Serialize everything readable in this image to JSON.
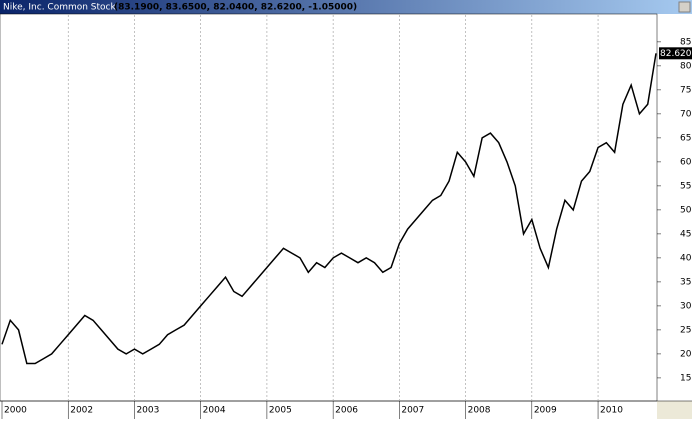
{
  "chart_data": {
    "type": "line",
    "title": "Nike, Inc. Common Stock",
    "subtitle": "(83.1900, 83.6500, 82.0400, 82.6200, -1.05000)",
    "categories": [
      "2000",
      null,
      null,
      null,
      null,
      null,
      null,
      null,
      "2002",
      null,
      null,
      null,
      null,
      null,
      null,
      null,
      "2003",
      null,
      null,
      null,
      null,
      null,
      null,
      null,
      "2004",
      null,
      null,
      null,
      null,
      null,
      null,
      null,
      "2005",
      null,
      null,
      null,
      null,
      null,
      null,
      null,
      "2006",
      null,
      null,
      null,
      null,
      null,
      null,
      null,
      "2007",
      null,
      null,
      null,
      null,
      null,
      null,
      null,
      "2008",
      null,
      null,
      null,
      null,
      null,
      null,
      null,
      "2009",
      null,
      null,
      null,
      null,
      null,
      null,
      null,
      "2010",
      null,
      null,
      null,
      null,
      null,
      null,
      null
    ],
    "series": [
      {
        "name": "Nike, Inc. Common Stock",
        "color": "#000000",
        "values": [
          22,
          27,
          25,
          18,
          18,
          19,
          20,
          22,
          24,
          26,
          28,
          27,
          25,
          23,
          21,
          20,
          21,
          20,
          21,
          22,
          24,
          25,
          26,
          28,
          30,
          32,
          34,
          36,
          33,
          32,
          34,
          36,
          38,
          40,
          42,
          41,
          40,
          37,
          39,
          38,
          40,
          41,
          40,
          39,
          40,
          39,
          37,
          38,
          43,
          46,
          48,
          50,
          52,
          53,
          56,
          62,
          60,
          57,
          65,
          66,
          64,
          60,
          55,
          45,
          48,
          42,
          38,
          46,
          52,
          50,
          56,
          58,
          63,
          64,
          62,
          72,
          76,
          70,
          72,
          82.62
        ],
        "value_labels": [
          null,
          null,
          null,
          null,
          null,
          null,
          null,
          null,
          null,
          null,
          null,
          null,
          null,
          null,
          null,
          null,
          null,
          null,
          null,
          null,
          null,
          null,
          null,
          null,
          null,
          null,
          null,
          null,
          null,
          null,
          null,
          null,
          null,
          null,
          null,
          null,
          null,
          null,
          null,
          null,
          null,
          null,
          null,
          null,
          null,
          null,
          null,
          null,
          null,
          null,
          null,
          null,
          null,
          null,
          null,
          null,
          null,
          null,
          null,
          null,
          null,
          null,
          null,
          null,
          null,
          null,
          null,
          null,
          null,
          null,
          null,
          null,
          null,
          null,
          null,
          null,
          null,
          null,
          null,
          "82.6200"
        ]
      }
    ],
    "ylim": [
      10.4,
      90.6
    ],
    "yticks": [
      15,
      20,
      25,
      30,
      35,
      40,
      45,
      50,
      55,
      60,
      65,
      70,
      75,
      80,
      85
    ],
    "grid": true
  }
}
